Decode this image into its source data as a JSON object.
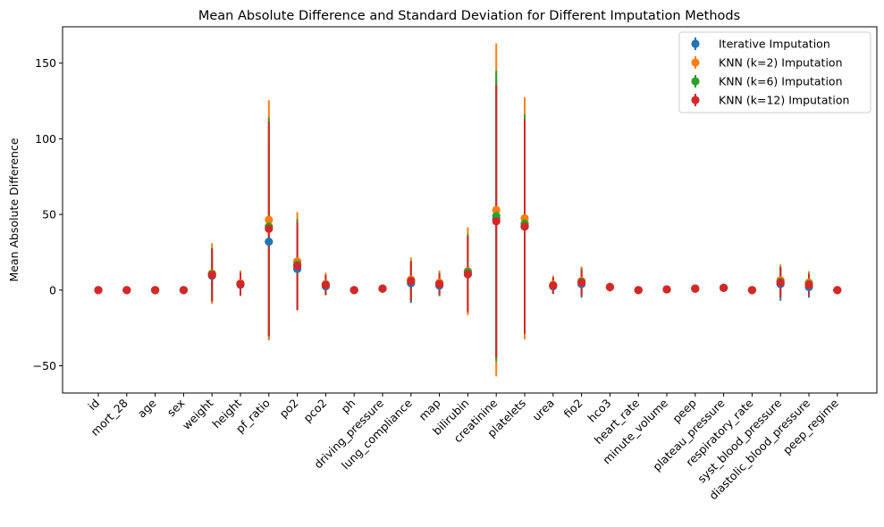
{
  "chart_data": {
    "type": "errorbar",
    "title": "Mean Absolute Difference and Standard Deviation for Different Imputation Methods",
    "xlabel": "",
    "ylabel": "Mean Absolute Difference",
    "ylim": [
      -68,
      174
    ],
    "yticks": [
      -50,
      0,
      50,
      100,
      150
    ],
    "grid": false,
    "legend_position": "top-right",
    "categories": [
      "id",
      "mort_28",
      "age",
      "sex",
      "weight",
      "height",
      "pf_ratio",
      "po2",
      "pco2",
      "ph",
      "driving_pressure",
      "lung_compliance",
      "map",
      "bilirubin",
      "creatinine",
      "platelets",
      "urea",
      "fio2",
      "hco3",
      "heart_rate",
      "minute_volume",
      "peep",
      "plateau_pressure",
      "respiratory_rate",
      "syst_blood_pressure",
      "diastolic_blood_pressure",
      "peep_regime"
    ],
    "series": [
      {
        "name": "Iterative Imputation",
        "color": "#1f77b4",
        "values": [
          0,
          0,
          0,
          0,
          9.5,
          3.5,
          32,
          14,
          2.5,
          0,
          1,
          4.5,
          3,
          10.5,
          47,
          42,
          2.5,
          4,
          2,
          0,
          0.5,
          1,
          1.5,
          0,
          4,
          2,
          0
        ],
        "errors": [
          0,
          0,
          0,
          0,
          16,
          6.5,
          65,
          27,
          5.5,
          0.3,
          1.5,
          13,
          7,
          26,
          92,
          72,
          4.5,
          9,
          2.5,
          0.5,
          1,
          2,
          2,
          0.5,
          11,
          7,
          0
        ]
      },
      {
        "name": "KNN (k=2) Imputation",
        "color": "#ff7f0e",
        "values": [
          0,
          0,
          0,
          0,
          11,
          4.5,
          46.5,
          19,
          4,
          0,
          1,
          7,
          5,
          12.5,
          53,
          47.5,
          3.5,
          6,
          2,
          0,
          0.5,
          1,
          1.5,
          0,
          6.5,
          5,
          0
        ],
        "errors": [
          0,
          0,
          0,
          0,
          20,
          8.5,
          79,
          32.5,
          7.5,
          0.4,
          2,
          14.5,
          8,
          29,
          110,
          80,
          6,
          9.5,
          3,
          0.5,
          1,
          2,
          2.5,
          0.5,
          10.5,
          7.5,
          0
        ]
      },
      {
        "name": "KNN (k=6) Imputation",
        "color": "#2ca02c",
        "values": [
          0,
          0,
          0,
          0,
          10.5,
          4,
          42,
          17,
          3.5,
          0,
          1,
          6,
          4,
          12,
          49,
          44,
          3,
          5.5,
          2,
          0,
          0.5,
          1,
          1.5,
          0,
          5.5,
          4,
          0
        ],
        "errors": [
          0,
          0,
          0,
          0,
          17.5,
          7.5,
          72,
          30,
          6.5,
          0.4,
          1.5,
          13.5,
          7.5,
          25,
          96,
          72,
          5.5,
          9,
          2.5,
          0.5,
          1,
          2,
          2,
          0.5,
          10,
          7,
          0
        ]
      },
      {
        "name": "KNN (k=12) Imputation",
        "color": "#d62728",
        "values": [
          0,
          0,
          0,
          0,
          10,
          4,
          40.5,
          16,
          3.5,
          0,
          1,
          6,
          4,
          10.5,
          45.5,
          42,
          3,
          5,
          2,
          0,
          0.5,
          1,
          1.5,
          0,
          5,
          3.5,
          0
        ],
        "errors": [
          0,
          0,
          0,
          0,
          17.5,
          7.5,
          71,
          29,
          6.5,
          0.4,
          1.5,
          13,
          7,
          25,
          90,
          71,
          5.5,
          8.5,
          2.5,
          0.5,
          1,
          2,
          2,
          0.5,
          10,
          7,
          0
        ]
      }
    ]
  }
}
